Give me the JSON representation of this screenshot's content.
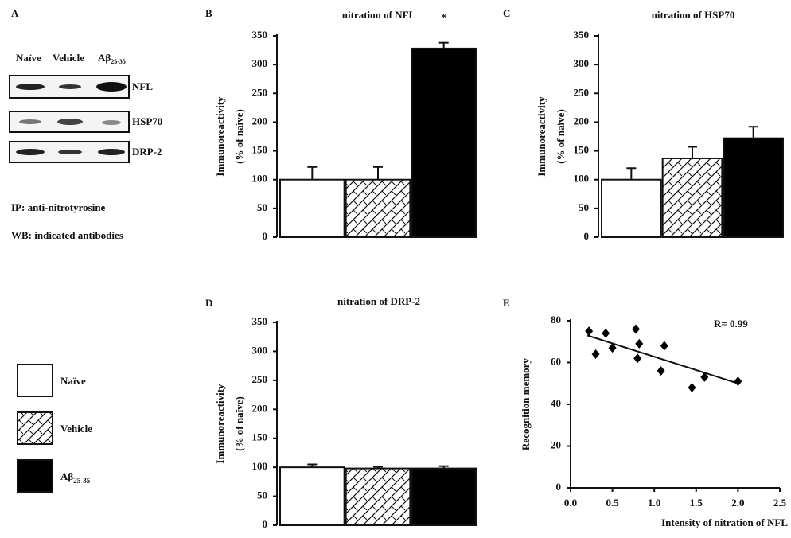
{
  "blot": {
    "panel": "A",
    "lanes": [
      {
        "label": "Naïve"
      },
      {
        "label": "Vehicle"
      },
      {
        "label": "Aβ",
        "subscript": "25-35"
      }
    ],
    "bands": [
      "NFL",
      "HSP70",
      "DRP-2"
    ],
    "notes": [
      "IP: anti-nitrotyrosine",
      "WB: indicated antibodies"
    ]
  },
  "legend": [
    {
      "label": "Naïve"
    },
    {
      "label": "Vehicle"
    },
    {
      "label": "Aβ",
      "subscript": "25-35"
    }
  ],
  "chart_data": [
    {
      "type": "bar",
      "panel": "B",
      "title": "nitration of NFL",
      "ylabel": [
        "Immunoreactivity",
        "(% of naïve)"
      ],
      "values": [
        100,
        100,
        328
      ],
      "errors": [
        22,
        22,
        10
      ],
      "fills": [
        "#ffffff",
        "#ffffff",
        "#000000"
      ],
      "hatched": [
        false,
        true,
        false
      ],
      "annotations": [
        {
          "bar": 2,
          "text": "*"
        }
      ],
      "ylim": [
        0,
        350
      ],
      "yticks": [
        0,
        50,
        100,
        150,
        200,
        250,
        300,
        350
      ]
    },
    {
      "type": "bar",
      "panel": "C",
      "title": "nitration of HSP70",
      "ylabel": [
        "Immunoreactivity",
        "(% of naïve)"
      ],
      "values": [
        100,
        137,
        172
      ],
      "errors": [
        20,
        20,
        20
      ],
      "fills": [
        "#ffffff",
        "#ffffff",
        "#000000"
      ],
      "hatched": [
        false,
        true,
        false
      ],
      "ylim": [
        0,
        350
      ],
      "yticks": [
        0,
        50,
        100,
        150,
        200,
        250,
        300,
        350
      ]
    },
    {
      "type": "bar",
      "panel": "D",
      "title": "nitration of DRP-2",
      "ylabel": [
        "Immunoreactivity",
        "(% of naïve)"
      ],
      "values": [
        100,
        98,
        98
      ],
      "errors": [
        5,
        3,
        4
      ],
      "fills": [
        "#ffffff",
        "#ffffff",
        "#000000"
      ],
      "hatched": [
        false,
        true,
        false
      ],
      "ylim": [
        0,
        350
      ],
      "yticks": [
        0,
        50,
        100,
        150,
        200,
        250,
        300,
        350
      ]
    },
    {
      "type": "scatter",
      "panel": "E",
      "xlabel": "Intensity of nitration of NFL",
      "ylabel": "Recognition memory",
      "annotation": "R= 0.99",
      "x": [
        0.22,
        0.3,
        0.42,
        0.5,
        0.78,
        0.8,
        0.82,
        1.08,
        1.12,
        1.45,
        1.6,
        2.0
      ],
      "y": [
        75,
        64,
        74,
        67,
        76,
        62,
        69,
        56,
        68,
        48,
        53,
        51
      ],
      "color": "#000000",
      "trend": {
        "x": [
          0.2,
          2.0
        ],
        "y": [
          73,
          50
        ]
      },
      "xlim": [
        0,
        2.5
      ],
      "xticks": [
        {
          "value": 0,
          "label": "0.0"
        },
        0.5,
        {
          "value": 1,
          "label": "1.0"
        },
        1.5,
        {
          "value": 2,
          "label": "2.0"
        },
        2.5
      ],
      "ylim": [
        0,
        80
      ],
      "yticks": [
        0,
        20,
        40,
        60,
        80
      ]
    }
  ]
}
